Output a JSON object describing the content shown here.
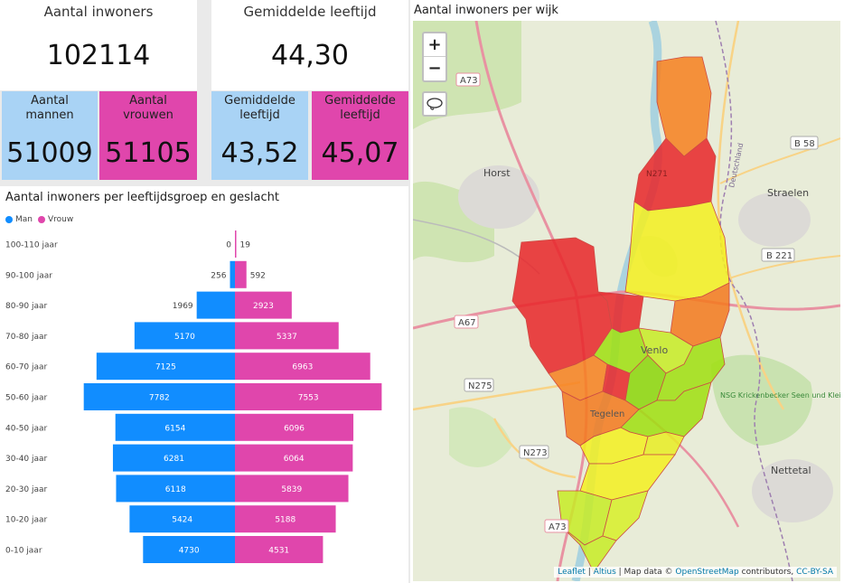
{
  "kpi_total": {
    "title": "Aantal inwoners",
    "value": "102114"
  },
  "kpi_age": {
    "title": "Gemiddelde leeftijd",
    "value": "44,30"
  },
  "men": {
    "label": "Aantal mannen",
    "value": "51009",
    "color": "#a9d3f5"
  },
  "women": {
    "label": "Aantal vrouwen",
    "value": "51105",
    "color": "#e046ac"
  },
  "age_men": {
    "label": "Gemiddelde leeftijd",
    "value": "43,52"
  },
  "age_women": {
    "label": "Gemiddelde leeftijd",
    "value": "45,07"
  },
  "pyramid_title": "Aantal inwoners per leeftijdsgroep en geslacht",
  "map_title": "Aantal inwoners per wijk",
  "map": {
    "zoom_in": "+",
    "zoom_out": "−",
    "labels": {
      "a73_top": "A73",
      "b58": "B 58",
      "horst": "Horst",
      "straelen": "Straelen",
      "b221": "B 221",
      "a67": "A67",
      "n275": "N275",
      "n273": "N273",
      "nettetal": "Nettetal",
      "a73_bottom": "A73",
      "venlo": "Venlo",
      "tegelen": "Tegelen",
      "nsg": "NSG Krickenbecker Seen und Kleiner De Wittsee",
      "deutschland": "Deutschland",
      "n271": "N271"
    },
    "attribution": {
      "leaflet": "Leaflet",
      "sep1": " | ",
      "altius": "Altius",
      "sep2": " | Map data © ",
      "osm": "OpenStreetMap",
      "contributors": " contributors, ",
      "license": "CC-BY-SA"
    }
  },
  "chart_data": {
    "type": "bar",
    "title": "Aantal inwoners per leeftijdsgroep en geslacht",
    "categories": [
      "100-110 jaar",
      "90-100 jaar",
      "80-90 jaar",
      "70-80 jaar",
      "60-70 jaar",
      "50-60 jaar",
      "40-50 jaar",
      "30-40 jaar",
      "20-30 jaar",
      "10-20 jaar",
      "0-10 jaar"
    ],
    "series": [
      {
        "name": "Man",
        "color": "#118dff",
        "values": [
          0,
          256,
          1969,
          5170,
          7125,
          7782,
          6154,
          6281,
          6118,
          5424,
          4730
        ]
      },
      {
        "name": "Vrouw",
        "color": "#e046ac",
        "values": [
          19,
          592,
          2923,
          5337,
          6963,
          7553,
          6096,
          6064,
          5839,
          5188,
          4531
        ]
      }
    ],
    "legend": "top-left",
    "grid": false
  }
}
